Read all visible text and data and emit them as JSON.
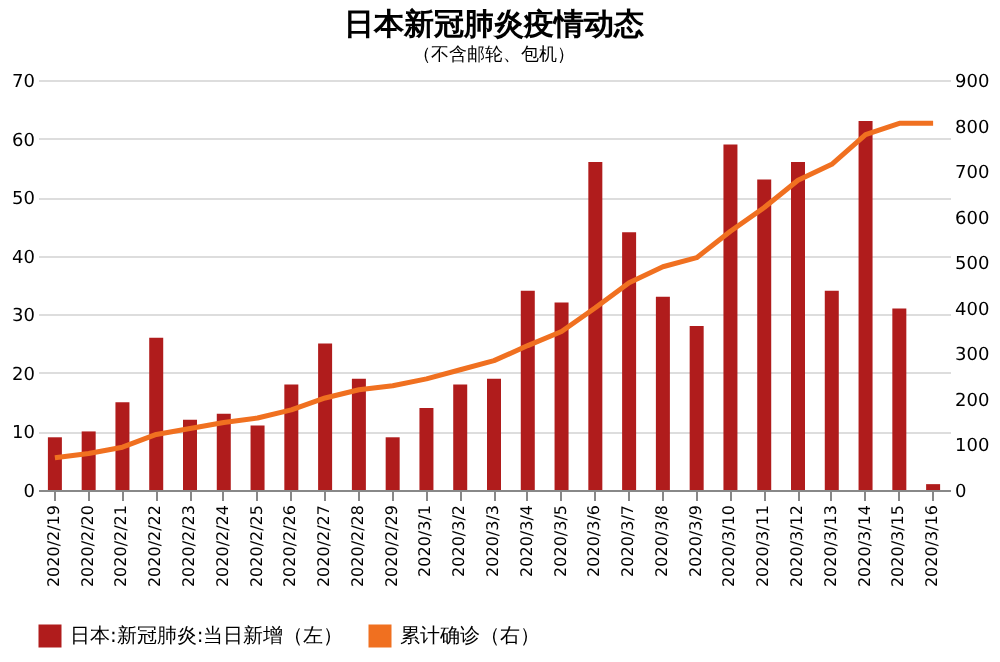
{
  "chart_data": {
    "type": "bar",
    "title": "日本新冠肺炎疫情动态",
    "subtitle": "（不含邮轮、包机）",
    "categories": [
      "2020/2/19",
      "2020/2/20",
      "2020/2/21",
      "2020/2/22",
      "2020/2/23",
      "2020/2/24",
      "2020/2/25",
      "2020/2/26",
      "2020/2/27",
      "2020/2/28",
      "2020/2/29",
      "2020/3/1",
      "2020/3/2",
      "2020/3/3",
      "2020/3/4",
      "2020/3/5",
      "2020/3/6",
      "2020/3/7",
      "2020/3/8",
      "2020/3/9",
      "2020/3/10",
      "2020/3/11",
      "2020/3/12",
      "2020/3/13",
      "2020/3/14",
      "2020/3/15",
      "2020/3/16"
    ],
    "series": [
      {
        "name": "日本:新冠肺炎:当日新增（左）",
        "color": "#b01c1c",
        "values": [
          9,
          10,
          15,
          26,
          12,
          13,
          11,
          18,
          25,
          19,
          9,
          14,
          18,
          19,
          34,
          32,
          56,
          44,
          33,
          28,
          59,
          53,
          56,
          34,
          63,
          31,
          1
        ]
      },
      {
        "name": "累计确诊（右）",
        "type": "line",
        "axis": "y2",
        "color": "#f07020",
        "values": [
          71,
          80,
          94,
          122,
          135,
          148,
          158,
          176,
          202,
          220,
          229,
          244,
          264,
          284,
          317,
          348,
          400,
          455,
          490,
          510,
          568,
          620,
          680,
          715,
          780,
          805,
          805
        ]
      }
    ],
    "ylim": [
      0,
      70
    ],
    "yticks": [
      0,
      10,
      20,
      30,
      40,
      50,
      60,
      70
    ],
    "y2lim": [
      0,
      900
    ],
    "y2ticks": [
      0,
      100,
      200,
      300,
      400,
      500,
      600,
      700,
      800,
      900
    ],
    "grid": "y",
    "legend": "bottom",
    "marker": "none",
    "line_style": "solid"
  }
}
